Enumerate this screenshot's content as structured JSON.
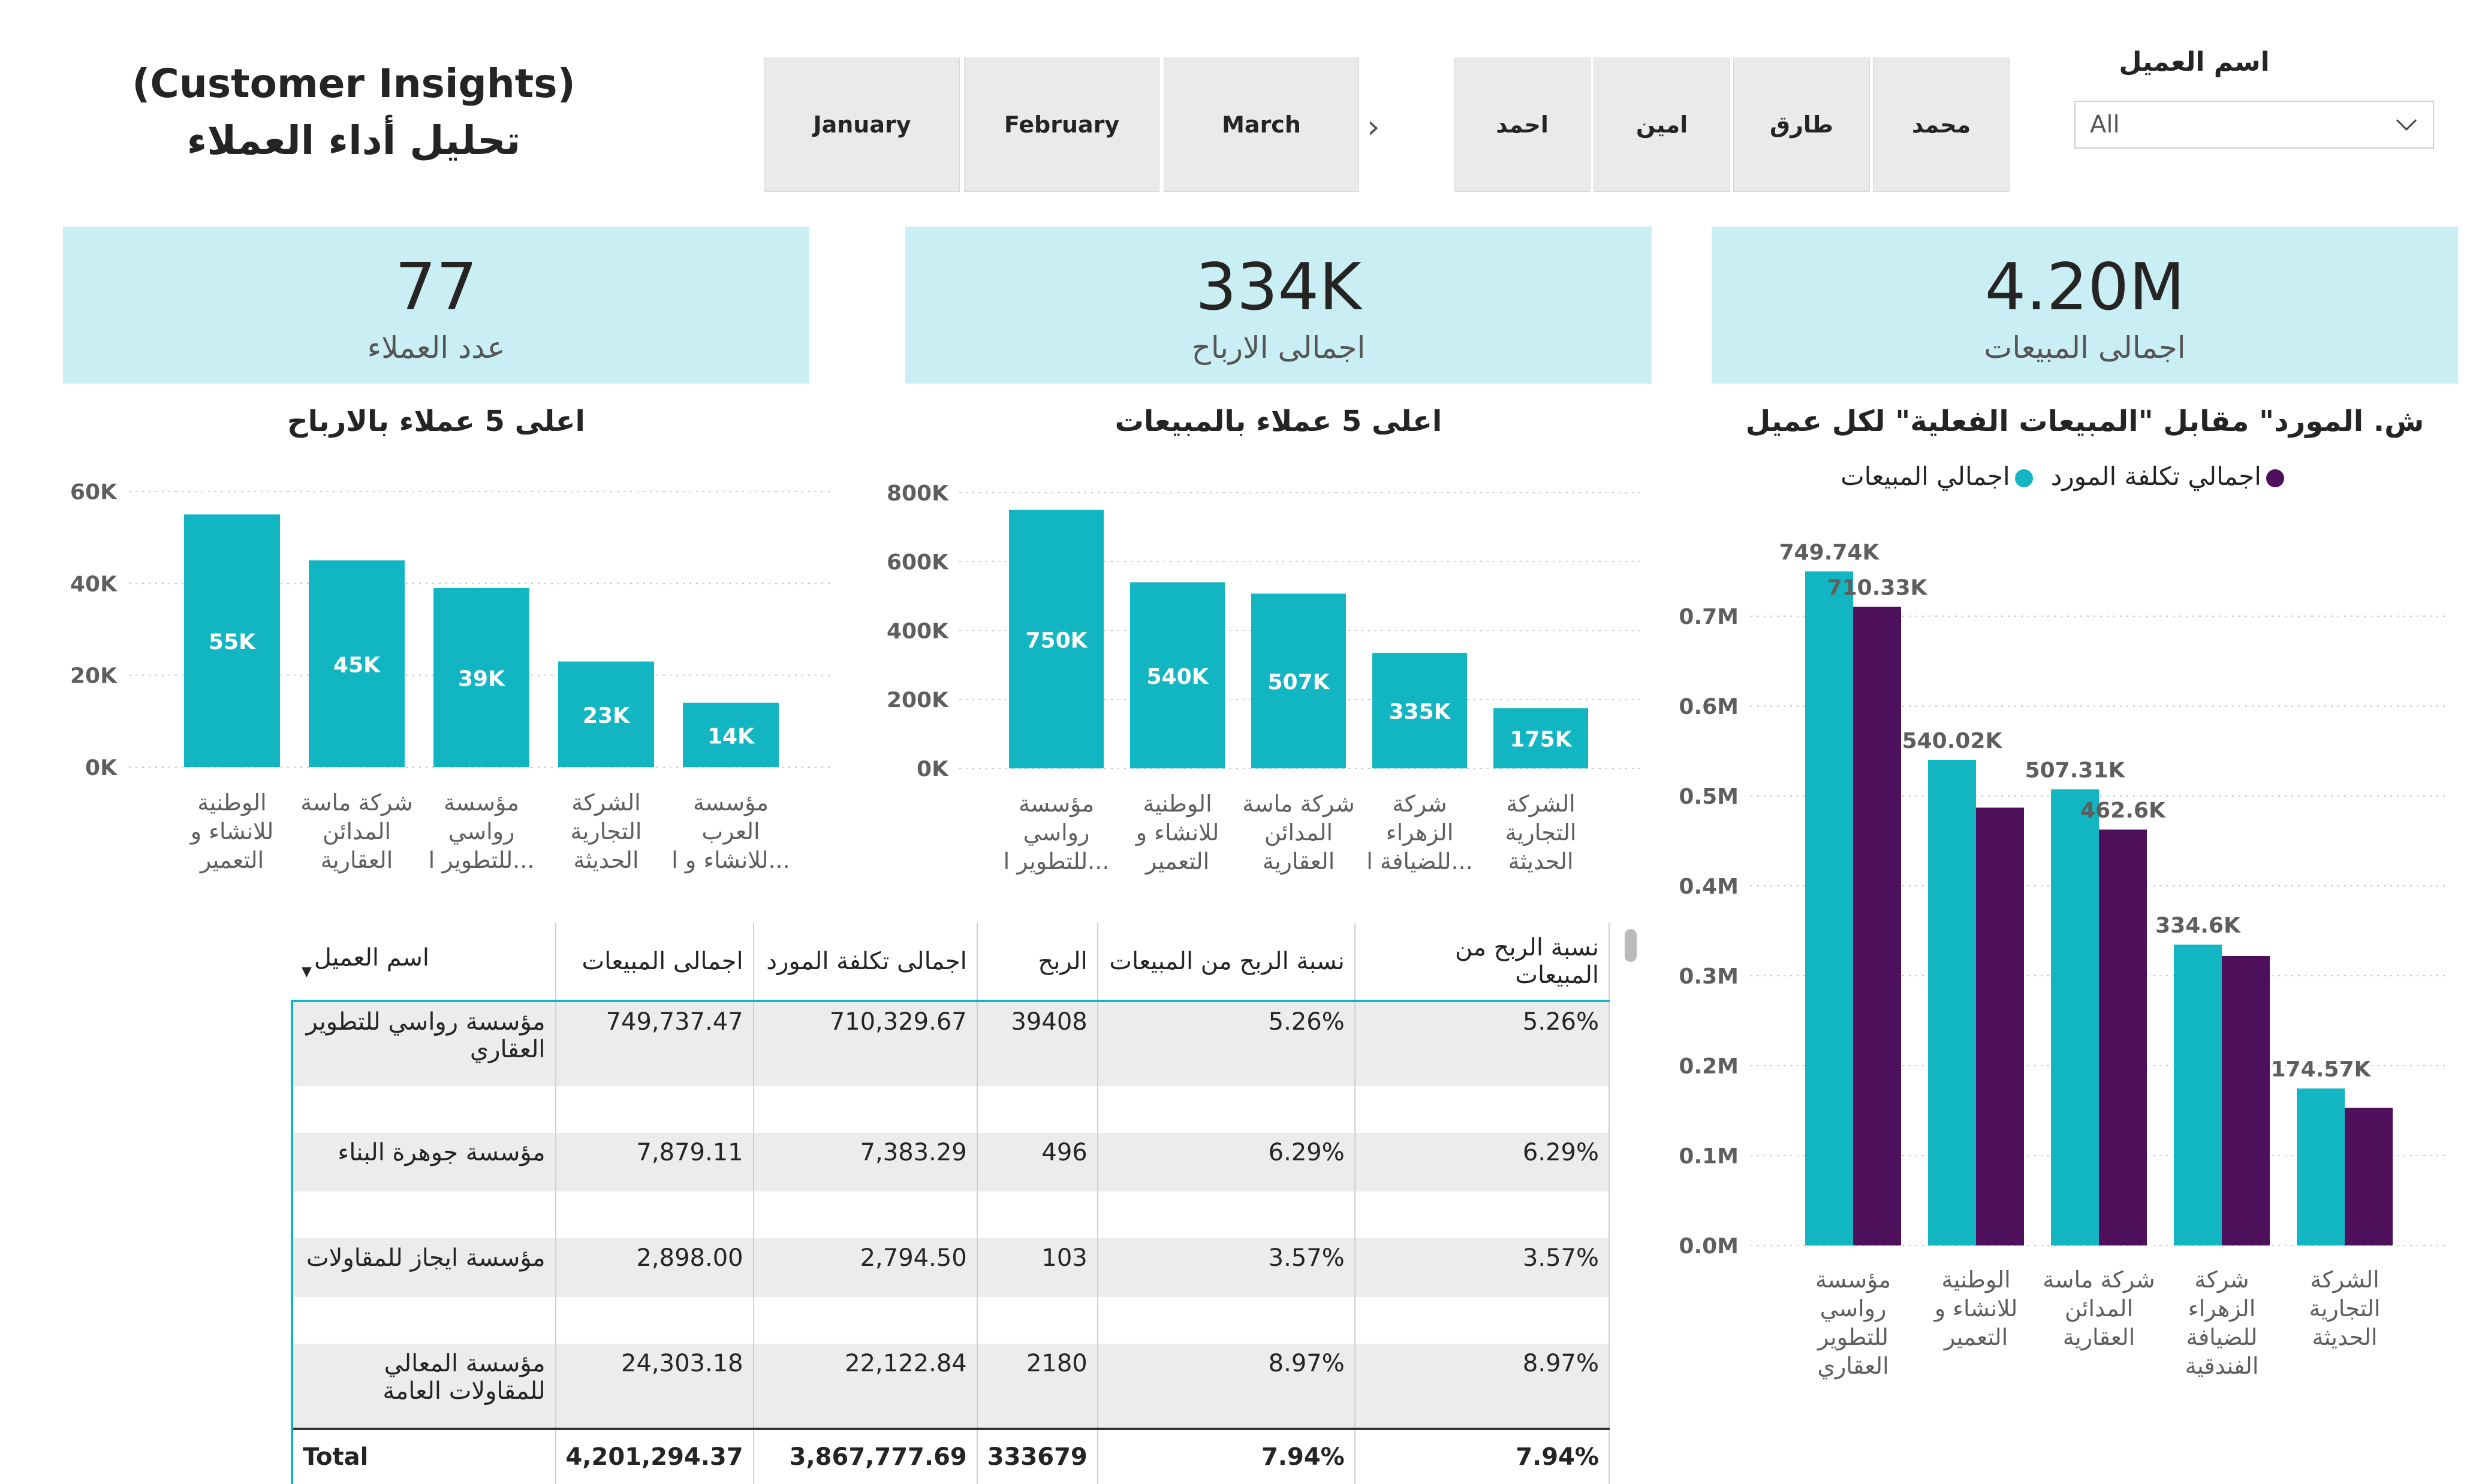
{
  "header": {
    "title_en": "(Customer Insights)",
    "title_ar": "تحليل أداء العملاء"
  },
  "month_slicer": {
    "items": [
      "January",
      "February",
      "March"
    ]
  },
  "name_slicer": {
    "items": [
      "احمد",
      "امين",
      "طارق",
      "محمد"
    ]
  },
  "customer_dropdown": {
    "label": "اسم العميل",
    "value": "All"
  },
  "kpis": [
    {
      "value": "77",
      "label": "عدد العملاء"
    },
    {
      "value": "334K",
      "label": "اجمالى الارباح"
    },
    {
      "value": "4.20M",
      "label": "اجمالى المبيعات"
    }
  ],
  "colors": {
    "teal": "#12b5c2",
    "purple": "#4e0f5b",
    "kpi_bg": "#c9eff4"
  },
  "chart_data": [
    {
      "type": "bar",
      "title": "اعلى 5 عملاء بالارباح",
      "categories": [
        [
          "الوطنية",
          "للانشاء و",
          "التعمير"
        ],
        [
          "شركة ماسة",
          "المدائن",
          "العقارية"
        ],
        [
          "مؤسسة",
          "رواسي",
          "للتطوير ا..."
        ],
        [
          "الشركة",
          "التجارية",
          "الحديثة"
        ],
        [
          "مؤسسة",
          "العرب",
          "للانشاء و ا..."
        ]
      ],
      "values": [
        55000,
        45000,
        39000,
        23000,
        14000
      ],
      "data_labels": [
        "55K",
        "45K",
        "39K",
        "23K",
        "14K"
      ],
      "yticks": [
        "0K",
        "20K",
        "40K",
        "60K"
      ],
      "ylim": [
        0,
        60000
      ]
    },
    {
      "type": "bar",
      "title": "اعلى 5 عملاء بالمبيعات",
      "categories": [
        [
          "مؤسسة",
          "رواسي",
          "للتطوير ا..."
        ],
        [
          "الوطنية",
          "للانشاء و",
          "التعمير"
        ],
        [
          "شركة ماسة",
          "المدائن",
          "العقارية"
        ],
        [
          "شركة",
          "الزهراء",
          "للضيافة ا..."
        ],
        [
          "الشركة",
          "التجارية",
          "الحديثة"
        ]
      ],
      "values": [
        750000,
        540000,
        507000,
        335000,
        175000
      ],
      "data_labels": [
        "750K",
        "540K",
        "507K",
        "335K",
        "175K"
      ],
      "yticks": [
        "0K",
        "200K",
        "400K",
        "600K",
        "800K"
      ],
      "ylim": [
        0,
        800000
      ]
    },
    {
      "type": "bar",
      "title": "ش. المورد\" مقابل \"المبيعات الفعلية\" لكل عميل",
      "legend": [
        "اجمالي المبيعات",
        "اجمالي تكلفة المورد"
      ],
      "categories": [
        [
          "مؤسسة",
          "رواسي",
          "للتطوير",
          "العقاري"
        ],
        [
          "الوطنية",
          "للانشاء و",
          "التعمير"
        ],
        [
          "شركة ماسة",
          "المدائن",
          "العقارية"
        ],
        [
          "شركة",
          "الزهراء",
          "للضيافة",
          "الفندقية"
        ],
        [
          "الشركة",
          "التجارية",
          "الحديثة"
        ]
      ],
      "series": [
        {
          "name": "اجمالي المبيعات",
          "values": [
            749740,
            540020,
            507310,
            334600,
            174570
          ],
          "labels": [
            "749.74K",
            "540.02K",
            "507.31K",
            "334.6K",
            "174.57K"
          ]
        },
        {
          "name": "اجمالي تكلفة المورد",
          "values": [
            710330,
            487000,
            462600,
            322000,
            153000
          ],
          "labels": [
            "710.33K",
            "",
            "462.6K",
            "",
            ""
          ]
        }
      ],
      "yticks": [
        "0.0M",
        "0.1M",
        "0.2M",
        "0.3M",
        "0.4M",
        "0.5M",
        "0.6M",
        "0.7M"
      ],
      "ylim": [
        0,
        750000
      ]
    },
    {
      "type": "table",
      "columns": [
        "اسم العميل",
        "اجمالى المبيعات",
        "اجمالى تكلفة المورد",
        "الربح",
        "نسبة الربح من المبيعات",
        "نسبة الربح من المبيعات"
      ],
      "rows": [
        [
          "مؤسسة رواسي للتطوير العقاري",
          "749,737.47",
          "710,329.67",
          "39408",
          "5.26%",
          "5.26%"
        ],
        [
          "مؤسسة جوهرة البناء",
          "7,879.11",
          "7,383.29",
          "496",
          "6.29%",
          "6.29%"
        ],
        [
          "مؤسسة ايجاز للمقاولات",
          "2,898.00",
          "2,794.50",
          "103",
          "3.57%",
          "3.57%"
        ],
        [
          "مؤسسة المعالي للمقاولات العامة",
          "24,303.18",
          "22,122.84",
          "2180",
          "8.97%",
          "8.97%"
        ]
      ],
      "total": [
        "Total",
        "4,201,294.37",
        "3,867,777.69",
        "333679",
        "7.94%",
        "7.94%"
      ]
    }
  ]
}
